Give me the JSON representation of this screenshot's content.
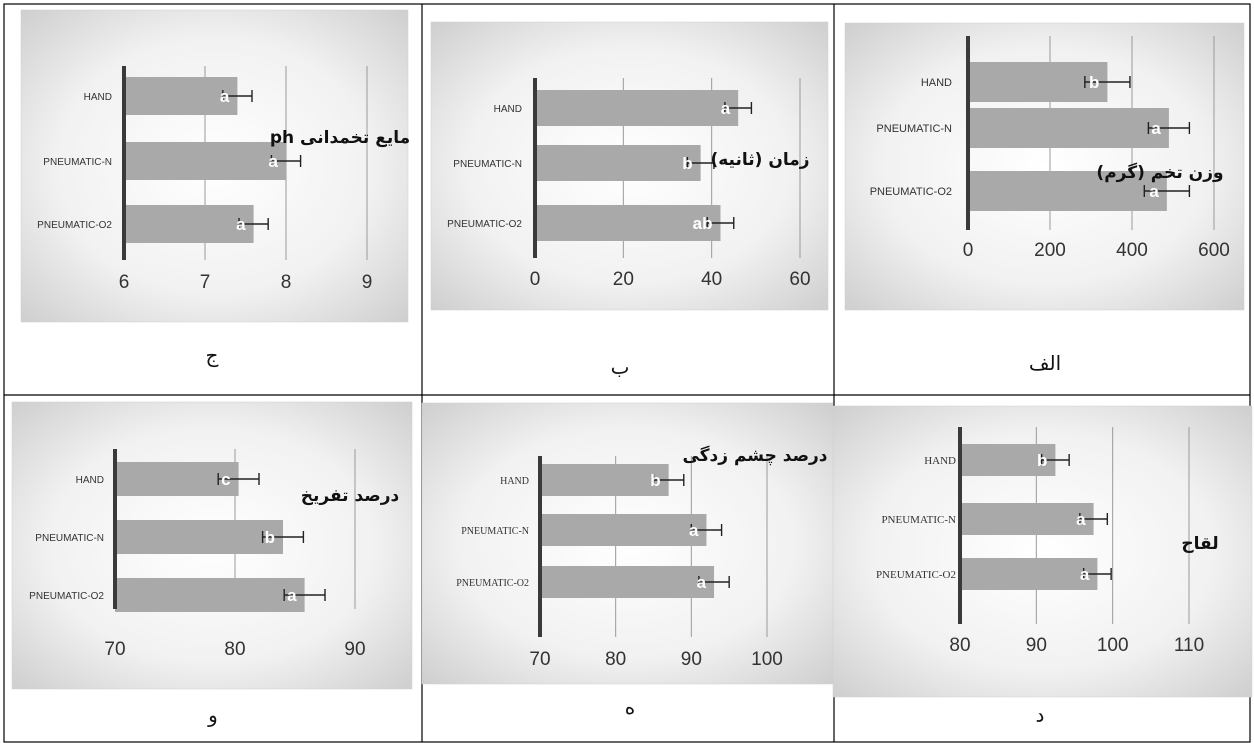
{
  "panel_labels": {
    "p1": "الف",
    "p2": "ب",
    "p3": "ج",
    "p4": "د",
    "p5": "ه",
    "p6": "و"
  },
  "colors": {
    "bar": "#a9a9a9",
    "axis": "#3a3a3a",
    "grid": "#9a9a9a",
    "letter": "#ffffff",
    "border": "#000000"
  },
  "chart_data": [
    {
      "id": "p1",
      "type": "bar",
      "orientation": "horizontal",
      "title": "وزن تخم (گرم)",
      "categories": [
        "HAND",
        "PNEUMATIC-N",
        "PNEUMATIC-O2"
      ],
      "values": [
        340,
        490,
        485
      ],
      "errors": [
        55,
        50,
        55
      ],
      "letters": [
        "b",
        "a",
        "a"
      ],
      "xlim": [
        0,
        600
      ],
      "xticks": [
        "0",
        "200",
        "400",
        "600"
      ],
      "grid": true
    },
    {
      "id": "p2",
      "type": "bar",
      "orientation": "horizontal",
      "title": "زمان (ثانیه)",
      "categories": [
        "HAND",
        "PNEUMATIC-N",
        "PNEUMATIC-O2"
      ],
      "values": [
        46,
        37.5,
        42
      ],
      "errors": [
        3,
        3,
        3
      ],
      "letters": [
        "a",
        "b",
        "ab"
      ],
      "xlim": [
        0,
        60
      ],
      "xticks": [
        "0",
        "20",
        "40",
        "60"
      ],
      "grid": true
    },
    {
      "id": "p3",
      "type": "bar",
      "orientation": "horizontal",
      "title": "مایع تخمدانی ph",
      "categories": [
        "HAND",
        "PNEUMATIC-N",
        "PNEUMATIC-O2"
      ],
      "values": [
        7.4,
        8.0,
        7.6
      ],
      "errors": [
        0.18,
        0.18,
        0.18
      ],
      "letters": [
        "a",
        "a",
        "a"
      ],
      "xlim": [
        6,
        9
      ],
      "xticks": [
        "6",
        "7",
        "8",
        "9"
      ],
      "grid": true
    },
    {
      "id": "p4",
      "type": "bar",
      "orientation": "horizontal",
      "title": "لقاح",
      "categories": [
        "HAND",
        "PNEUMATIC-N",
        "PNEUMATIC-O2"
      ],
      "values": [
        92.5,
        97.5,
        98
      ],
      "errors": [
        1.8,
        1.8,
        1.8
      ],
      "letters": [
        "b",
        "a",
        "a"
      ],
      "xlim": [
        80,
        110
      ],
      "xticks": [
        "80",
        "90",
        "100",
        "110"
      ],
      "grid": true
    },
    {
      "id": "p5",
      "type": "bar",
      "orientation": "horizontal",
      "title": "درصد چشم زدگی",
      "categories": [
        "HAND",
        "PNEUMATIC-N",
        "PNEUMATIC-O2"
      ],
      "values": [
        87,
        92,
        93
      ],
      "errors": [
        2,
        2,
        2
      ],
      "letters": [
        "b",
        "a",
        "a"
      ],
      "xlim": [
        70,
        100
      ],
      "xticks": [
        "70",
        "80",
        "90",
        "100"
      ],
      "grid": true
    },
    {
      "id": "p6",
      "type": "bar",
      "orientation": "horizontal",
      "title": "درصد تفریخ",
      "categories": [
        "HAND",
        "PNEUMATIC-N",
        "PNEUMATIC-O2"
      ],
      "values": [
        80.3,
        84,
        85.8
      ],
      "errors": [
        1.7,
        1.7,
        1.7
      ],
      "letters": [
        "c",
        "b",
        "a"
      ],
      "xlim": [
        70,
        90
      ],
      "xticks": [
        "70",
        "80",
        "90"
      ],
      "grid": true
    }
  ]
}
